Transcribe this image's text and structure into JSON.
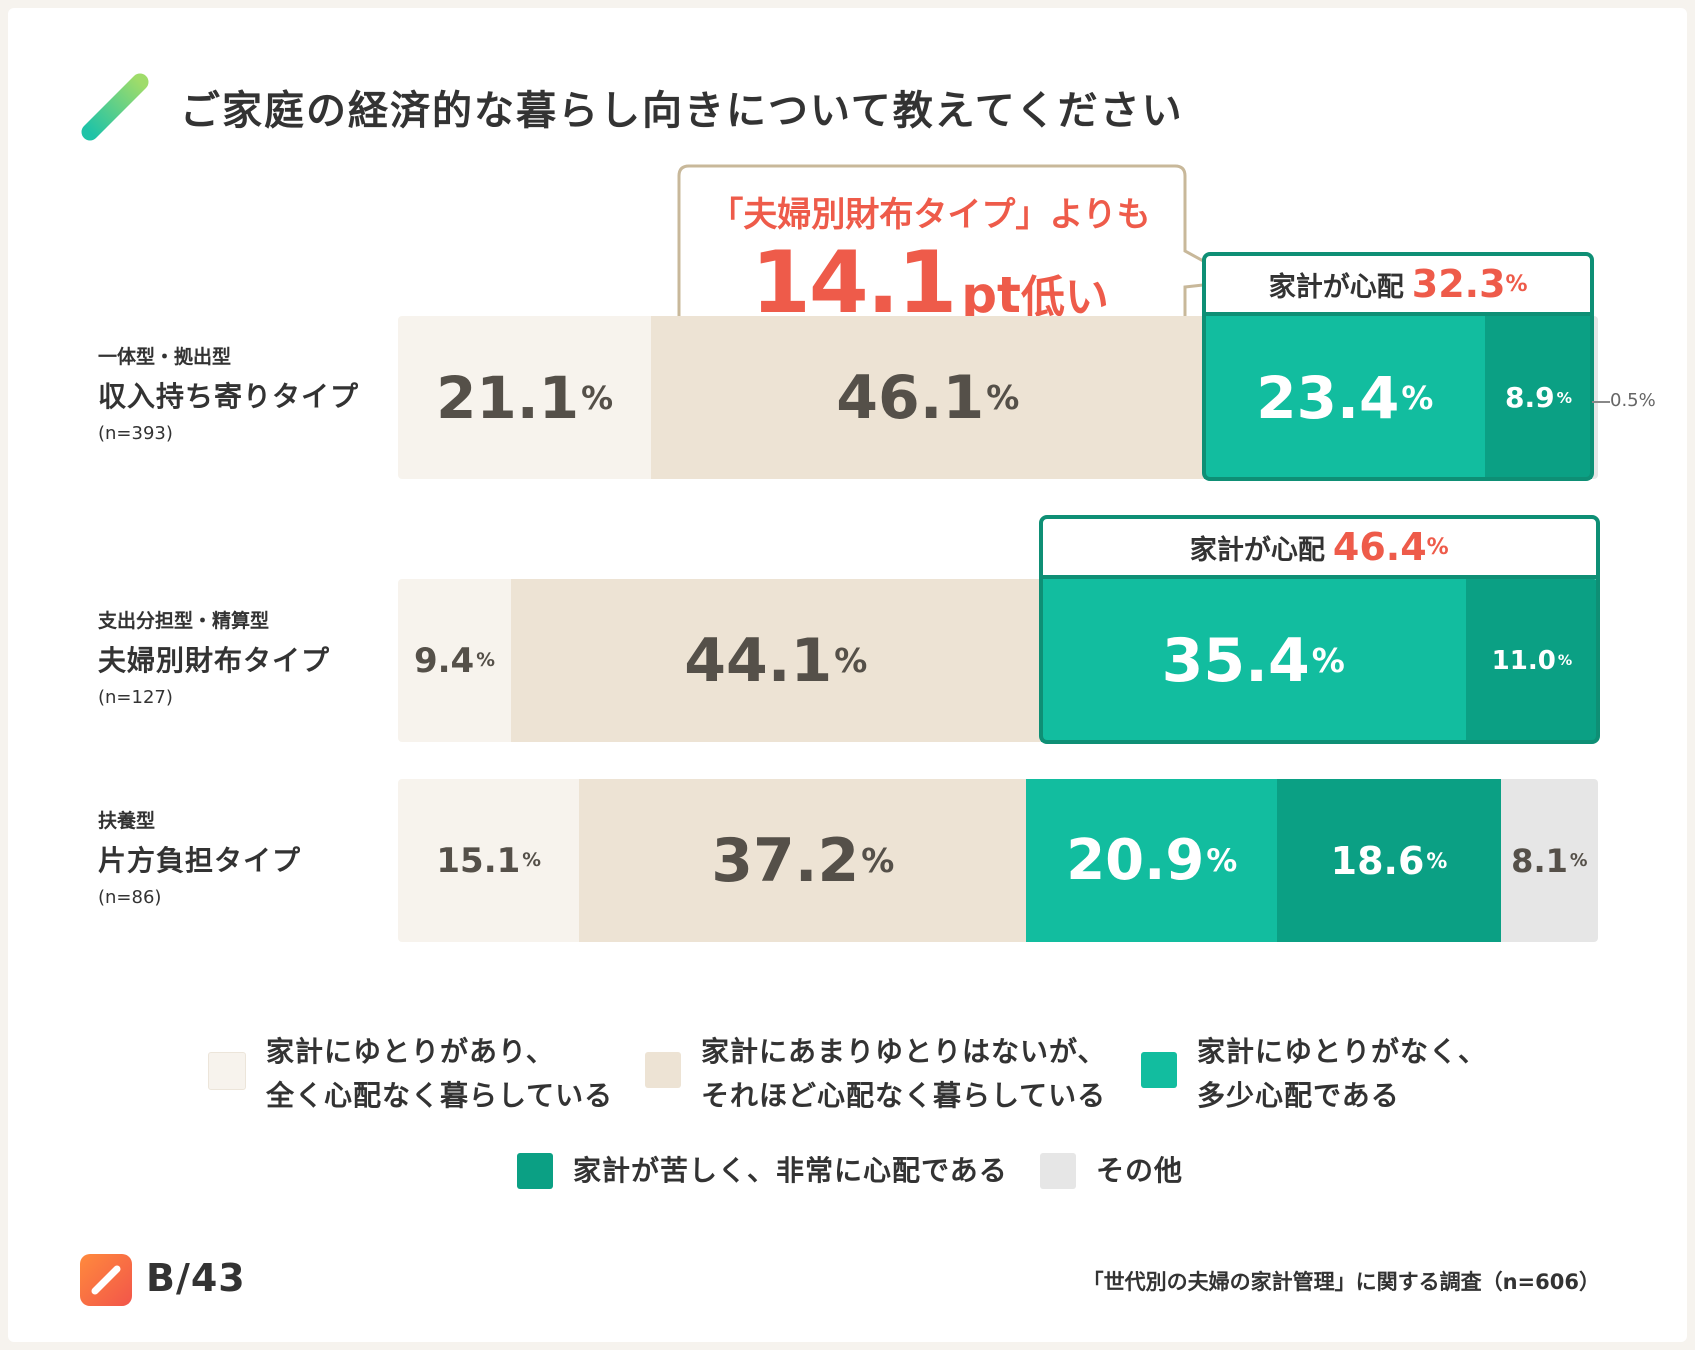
{
  "title": "ご家庭の経済的な暮らし向きについて教えてください",
  "callout": {
    "line1": "「夫婦別財布タイプ」よりも",
    "value": "14.1",
    "unit": "pt",
    "suffix": "低い"
  },
  "colors": {
    "cat1": "#f7f3ed",
    "cat2": "#ede3d4",
    "cat3": "#12bd9f",
    "cat4": "#0ba084",
    "cat5": "#e6e6e6",
    "dark_text": "#555049",
    "accent_red": "#ee5b4a",
    "frame": "#0e8f75"
  },
  "chart_data": {
    "type": "bar",
    "orientation": "horizontal-stacked-100",
    "title": "ご家庭の経済的な暮らし向きについて教えてください",
    "categories": [
      "収入持ち寄りタイプ",
      "夫婦別財布タイプ",
      "片方負担タイプ"
    ],
    "rows": [
      {
        "sub": "一体型・拠出型",
        "name": "収入持ち寄りタイプ",
        "n": "(n=393)",
        "values": [
          21.1,
          46.1,
          23.4,
          8.9,
          0.5
        ],
        "labels": [
          "21.1",
          "46.1",
          "23.4",
          "8.9",
          ""
        ],
        "worry_label": "家計が心配",
        "worry_value": "32.3",
        "outside_label": "0.5%"
      },
      {
        "sub": "支出分担型・精算型",
        "name": "夫婦別財布タイプ",
        "n": "(n=127)",
        "values": [
          9.4,
          44.1,
          35.4,
          11.0,
          0.0
        ],
        "labels": [
          "9.4",
          "44.1",
          "35.4",
          "11.0",
          ""
        ],
        "worry_label": "家計が心配",
        "worry_value": "46.4"
      },
      {
        "sub": "扶養型",
        "name": "片方負担タイプ",
        "n": "(n=86)",
        "values": [
          15.1,
          37.2,
          20.9,
          18.6,
          8.1
        ],
        "labels": [
          "15.1",
          "37.2",
          "20.9",
          "18.6",
          "8.1"
        ]
      }
    ],
    "series": [
      {
        "name": "家計にゆとりがあり、全く心配なく暮らしている"
      },
      {
        "name": "家計にあまりゆとりはないが、それほど心配なく暮らしている"
      },
      {
        "name": "家計にゆとりがなく、多少心配である"
      },
      {
        "name": "家計が苦しく、非常に心配である"
      },
      {
        "name": "その他"
      }
    ],
    "unit": "%"
  },
  "legend": [
    {
      "line1": "家計にゆとりがあり、",
      "line2": "全く心配なく暮らしている"
    },
    {
      "line1": "家計にあまりゆとりはないが、",
      "line2": "それほど心配なく暮らしている"
    },
    {
      "line1": "家計にゆとりがなく、",
      "line2": "多少心配である"
    },
    {
      "line1": "家計が苦しく、非常に心配である",
      "line2": ""
    },
    {
      "line1": "その他",
      "line2": ""
    }
  ],
  "footer": {
    "logo_text": "B/43",
    "source": "「世代別の夫婦の家計管理」に関する調査（n=606）"
  }
}
